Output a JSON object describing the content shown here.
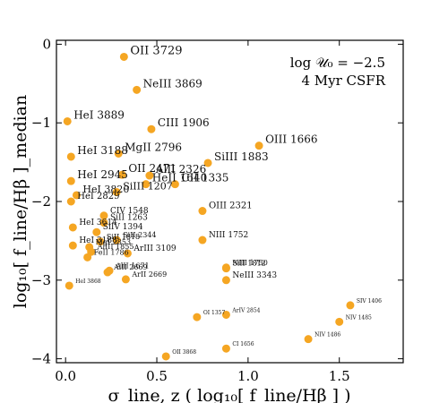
{
  "chart_data": {
    "type": "scatter",
    "xlim": [
      -0.05,
      1.85
    ],
    "ylim": [
      -4.05,
      0.05
    ],
    "xticks": [
      0.0,
      0.5,
      1.0,
      1.5
    ],
    "xtick_labels": [
      "0.0",
      "0.5",
      "1.0",
      "1.5"
    ],
    "yticks": [
      0,
      -1,
      -2,
      -3,
      -4
    ],
    "ytick_labels": [
      "0",
      "−1",
      "−2",
      "−3",
      "−4"
    ],
    "xlabel": "σ_line, z ( log₁₀[ f_line/Hβ ] )",
    "ylabel": "log₁₀[ f_line/Hβ ]_median",
    "annotation_line1": "log 𝒰₀ = −2.5",
    "annotation_line2": "4 Myr CSFR",
    "grid": false,
    "marker_color": "#f5a623",
    "points": [
      {
        "label": "OII 3729",
        "x": 0.32,
        "y": -0.16,
        "size": 13
      },
      {
        "label": "NeIII 3869",
        "x": 0.39,
        "y": -0.58,
        "size": 12
      },
      {
        "label": "HeI 3889",
        "x": 0.01,
        "y": -0.98,
        "size": 12
      },
      {
        "label": "CIII 1906",
        "x": 0.47,
        "y": -1.08,
        "size": 12
      },
      {
        "label": "OIII 1666",
        "x": 1.06,
        "y": -1.29,
        "size": 12
      },
      {
        "label": "HeI 3188",
        "x": 0.03,
        "y": -1.43,
        "size": 12
      },
      {
        "label": "MgII 2796",
        "x": 0.29,
        "y": -1.39,
        "size": 12
      },
      {
        "label": "SiIII 1883",
        "x": 0.78,
        "y": -1.51,
        "size": 12
      },
      {
        "label": "HeI 2945",
        "x": 0.03,
        "y": -1.74,
        "size": 12
      },
      {
        "label": "OII 2471",
        "x": 0.31,
        "y": -1.66,
        "size": 12
      },
      {
        "label": "AlII 2326",
        "x": 0.46,
        "y": -1.67,
        "size": 12
      },
      {
        "label": "HeII 1640",
        "x": 0.44,
        "y": -1.78,
        "size": 12
      },
      {
        "label": "CII 1335",
        "x": 0.6,
        "y": -1.78,
        "size": 12
      },
      {
        "label": "SiIII 1207",
        "x": 0.28,
        "y": -1.88,
        "size": 11
      },
      {
        "label": "HeI 3820",
        "x": 0.06,
        "y": -1.92,
        "size": 11
      },
      {
        "label": "HeI 2829",
        "x": 0.03,
        "y": -2.0,
        "size": 10
      },
      {
        "label": "OIII 2321",
        "x": 0.75,
        "y": -2.12,
        "size": 10
      },
      {
        "label": "CIV 1548",
        "x": 0.21,
        "y": -2.18,
        "size": 9
      },
      {
        "label": "SiII 1263",
        "x": 0.21,
        "y": -2.27,
        "size": 9
      },
      {
        "label": "HeI 3614",
        "x": 0.04,
        "y": -2.33,
        "size": 9
      },
      {
        "label": "SiIV 1394",
        "x": 0.17,
        "y": -2.39,
        "size": 9
      },
      {
        "label": "SiII 2344",
        "x": 0.28,
        "y": -2.49,
        "size": 8
      },
      {
        "label": "SiII 1818",
        "x": 0.19,
        "y": -2.51,
        "size": 8
      },
      {
        "label": "NIII 1752",
        "x": 0.75,
        "y": -2.49,
        "size": 9
      },
      {
        "label": "HeI 3188",
        "x": 0.04,
        "y": -2.56,
        "size": 9
      },
      {
        "label": "MgI 2853",
        "x": 0.13,
        "y": -2.58,
        "size": 8
      },
      {
        "label": "AlIII 1855",
        "x": 0.14,
        "y": -2.64,
        "size": 8
      },
      {
        "label": "FeII 1786",
        "x": 0.12,
        "y": -2.71,
        "size": 8
      },
      {
        "label": "ArIII 3109",
        "x": 0.34,
        "y": -2.66,
        "size": 9
      },
      {
        "label": "NIII 1750",
        "x": 0.88,
        "y": -2.84,
        "size": 8
      },
      {
        "label": "SiII 1812",
        "x": 0.88,
        "y": -2.85,
        "size": 8
      },
      {
        "label": "AlII 2669",
        "x": 0.23,
        "y": -2.9,
        "size": 8
      },
      {
        "label": "AlII 1671",
        "x": 0.24,
        "y": -2.88,
        "size": 8
      },
      {
        "label": "ArII 2669",
        "x": 0.33,
        "y": -2.99,
        "size": 8
      },
      {
        "label": "NeIII 3343",
        "x": 0.88,
        "y": -3.0,
        "size": 9
      },
      {
        "label": "HeI 3868",
        "x": 0.02,
        "y": -3.07,
        "size": 6
      },
      {
        "label": "SIV 1406",
        "x": 1.56,
        "y": -3.32,
        "size": 6
      },
      {
        "label": "OI 1357",
        "x": 0.72,
        "y": -3.47,
        "size": 6
      },
      {
        "label": "ArIV 2854",
        "x": 0.88,
        "y": -3.44,
        "size": 6
      },
      {
        "label": "NIV 1485",
        "x": 1.5,
        "y": -3.53,
        "size": 6
      },
      {
        "label": "NIV 1486",
        "x": 1.33,
        "y": -3.75,
        "size": 6
      },
      {
        "label": "CI 1656",
        "x": 0.88,
        "y": -3.87,
        "size": 6
      },
      {
        "label": "OII 3868",
        "x": 0.55,
        "y": -3.97,
        "size": 6
      }
    ]
  }
}
